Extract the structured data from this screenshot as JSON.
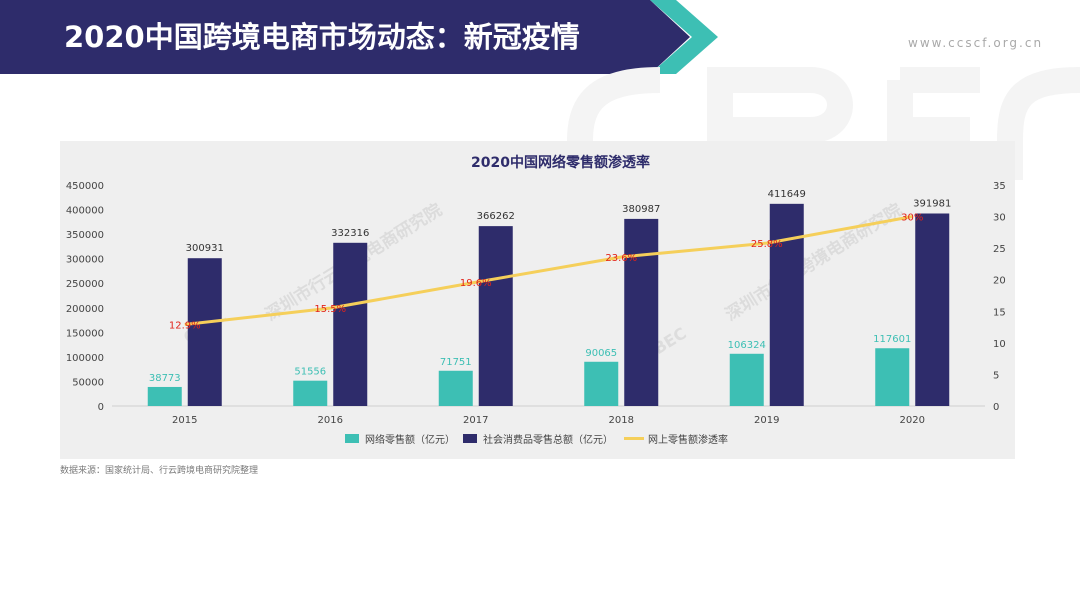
{
  "header": {
    "title": "2020中国跨境电商市场动态：新冠疫情",
    "website": "www.ccscf.org.cn",
    "band_color": "#2e2c6b",
    "accent_color": "#3dbfb4"
  },
  "watermark": {
    "brand": "CBEC",
    "institute": "深圳市行云跨境电商研究院"
  },
  "chart_data": {
    "type": "bar",
    "title": "2020中国网络零售额渗透率",
    "categories": [
      "2015",
      "2016",
      "2017",
      "2018",
      "2019",
      "2020"
    ],
    "series": [
      {
        "name": "网络零售额（亿元）",
        "kind": "bar",
        "axis": "left",
        "color": "#3dbfb4",
        "values": [
          38773,
          51556,
          71751,
          90065,
          106324,
          117601
        ]
      },
      {
        "name": "社会消费品零售总额（亿元）",
        "kind": "bar",
        "axis": "left",
        "color": "#2e2c6b",
        "values": [
          300931,
          332316,
          366262,
          380987,
          411649,
          391981
        ]
      },
      {
        "name": "网上零售额渗透率",
        "kind": "line",
        "axis": "right",
        "color": "#f5cf5a",
        "values": [
          12.9,
          15.5,
          19.6,
          23.6,
          25.8,
          30
        ],
        "labels": [
          "12.9%",
          "15.5%",
          "19.6%",
          "23.6%",
          "25.8%",
          "30%"
        ],
        "label_color": "#e2231a"
      }
    ],
    "y_left": {
      "ylim": [
        0,
        450000
      ],
      "ticks": [
        "0",
        "50000",
        "100000",
        "150000",
        "200000",
        "250000",
        "300000",
        "350000",
        "400000",
        "450000"
      ]
    },
    "y_right": {
      "ylim": [
        0,
        35
      ],
      "ticks": [
        "0",
        "5",
        "10",
        "15",
        "20",
        "25",
        "30",
        "35"
      ]
    },
    "grid": false,
    "legend_position": "bottom"
  },
  "source_note": "数据来源：国家统计局、行云跨境电商研究院整理"
}
